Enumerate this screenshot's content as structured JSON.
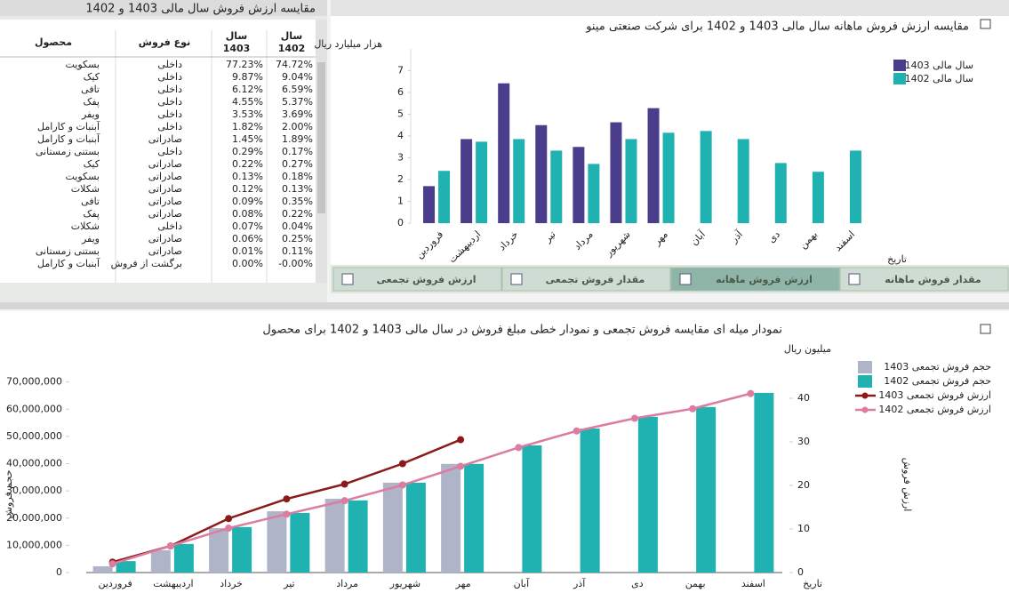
{
  "table_title": "مقایسه ارزش فروش سال مالی 1403 و 1402",
  "table": {
    "headers": [
      [
        "محصول"
      ],
      [
        "نوع فروش"
      ],
      [
        "سال",
        "1403"
      ],
      [
        "سال",
        "1402"
      ]
    ],
    "rows": [
      [
        "بسکویت",
        "داخلی",
        "77.23%",
        "74.72%"
      ],
      [
        "کیک",
        "داخلی",
        "9.87%",
        "9.04%"
      ],
      [
        "تافی",
        "داخلی",
        "6.12%",
        "6.59%"
      ],
      [
        "پفک",
        "داخلی",
        "4.55%",
        "5.37%"
      ],
      [
        "ویفر",
        "داخلی",
        "3.53%",
        "3.69%"
      ],
      [
        "آبنبات و کارامل",
        "داخلی",
        "1.82%",
        "2.00%"
      ],
      [
        "آبنبات و کارامل",
        "صادراتی",
        "1.45%",
        "1.89%"
      ],
      [
        "بستنی زمستانی",
        "داخلی",
        "0.29%",
        "0.17%"
      ],
      [
        "کیک",
        "صادراتی",
        "0.22%",
        "0.27%"
      ],
      [
        "بسکویت",
        "صادراتی",
        "0.13%",
        "0.18%"
      ],
      [
        "شکلات",
        "صادراتی",
        "0.12%",
        "0.13%"
      ],
      [
        "تافی",
        "صادراتی",
        "0.09%",
        "0.35%"
      ],
      [
        "پفک",
        "صادراتی",
        "0.08%",
        "0.22%"
      ],
      [
        "شکلات",
        "داخلی",
        "0.07%",
        "0.04%"
      ],
      [
        "ویفر",
        "صادراتی",
        "0.06%",
        "0.25%"
      ],
      [
        "بستنی زمستانی",
        "صادراتی",
        "0.01%",
        "0.11%"
      ],
      [
        "آبنبات و کارامل",
        "برگشت از فروش",
        "0.00%",
        "-0.00%"
      ]
    ]
  },
  "tabs": [
    "مقدار فروش ماهانه",
    "ارزش فروش ماهانه",
    "مقدار فروش تجمعی",
    "ارزش فروش تجمعی"
  ],
  "active_tab": 1,
  "chart_data": [
    {
      "type": "bar",
      "title": "مقایسه ارزش فروش ماهانه سال مالی 1403 و 1402 برای شرکت صنعتی مینو",
      "y_label": "هزار میلیارد ریال",
      "x_label": "تاریخ",
      "categories": [
        "فروردین",
        "اردیبهشت",
        "خرداد",
        "تیر",
        "مرداد",
        "شهریور",
        "مهر",
        "آبان",
        "آذر",
        "دی",
        "بهمن",
        "اسفند"
      ],
      "series": [
        {
          "name": "سال مالی 1403",
          "color": "#4a3d8c",
          "values": [
            1.7,
            3.86,
            6.42,
            4.5,
            3.5,
            4.63,
            5.28,
            null,
            null,
            null,
            null,
            null
          ]
        },
        {
          "name": "سال مالی 1402",
          "color": "#20b2b0",
          "values": [
            2.4,
            3.74,
            3.86,
            3.33,
            2.72,
            3.86,
            4.15,
            4.23,
            3.86,
            2.76,
            2.36,
            3.33
          ]
        }
      ],
      "ylim": [
        0,
        8
      ],
      "yticks": [
        0,
        1,
        2,
        3,
        4,
        5,
        6,
        7
      ],
      "grid": false,
      "legend": "right"
    },
    {
      "type": "combo",
      "title": "نمودار میله ای مقایسه فروش تجمعی و نمودار خطی مبلغ فروش در سال مالی 1403 و 1402 برای محصول",
      "y_label": "حجم فروش",
      "y2_label": "ارزش فروش",
      "y2_unit": "میلیون ریال",
      "x_label": "تاریخ",
      "categories": [
        "فروردین",
        "اردیبهشت",
        "خرداد",
        "تیر",
        "مرداد",
        "شهریور",
        "مهر",
        "آبان",
        "آذر",
        "دی",
        "بهمن",
        "اسفند"
      ],
      "series": [
        {
          "name": "حجم فروش تجمعی 1403",
          "type": "bar",
          "color": "#b0b4c8",
          "values": [
            2300000,
            8200000,
            16300000,
            22500000,
            27100000,
            33000000,
            39900000,
            null,
            null,
            null,
            null,
            null
          ]
        },
        {
          "name": "حجم فروش تجمعی 1402",
          "type": "bar",
          "color": "#20b2b0",
          "values": [
            4200000,
            10500000,
            16700000,
            21900000,
            26500000,
            33000000,
            39900000,
            46700000,
            52900000,
            57200000,
            60800000,
            66000000
          ]
        },
        {
          "name": "ارزش فروش تجمعی 1403",
          "type": "line",
          "axis": "y2",
          "color": "#8b1a1a",
          "values": [
            2.4,
            6.1,
            12.4,
            16.9,
            20.3,
            25,
            30.5,
            null,
            null,
            null,
            null,
            null
          ]
        },
        {
          "name": "ارزش فروش تجمعی 1402",
          "type": "line",
          "axis": "y2",
          "color": "#dc7ca0",
          "values": [
            2.0,
            6.1,
            10.2,
            13.4,
            16.5,
            20.1,
            24.4,
            28.7,
            32.5,
            35.4,
            37.6,
            41.1
          ]
        }
      ],
      "ylim": [
        0,
        80000000
      ],
      "yticks": [
        0,
        {
          "value": 10000000,
          "label": "10,000,000"
        },
        {
          "value": 20000000,
          "label": "20,000,000"
        },
        {
          "value": 30000000,
          "label": "30,000,000"
        },
        {
          "value": 40000000,
          "label": "40,000,000"
        },
        {
          "value": 50000000,
          "label": "50,000,000"
        },
        {
          "value": 60000000,
          "label": "60,000,000"
        },
        {
          "value": 70000000,
          "label": "70,000,000"
        }
      ],
      "y2lim": [
        0,
        50
      ],
      "y2ticks": [
        0,
        10,
        20,
        30,
        40
      ],
      "grid": false,
      "legend": "right"
    }
  ]
}
